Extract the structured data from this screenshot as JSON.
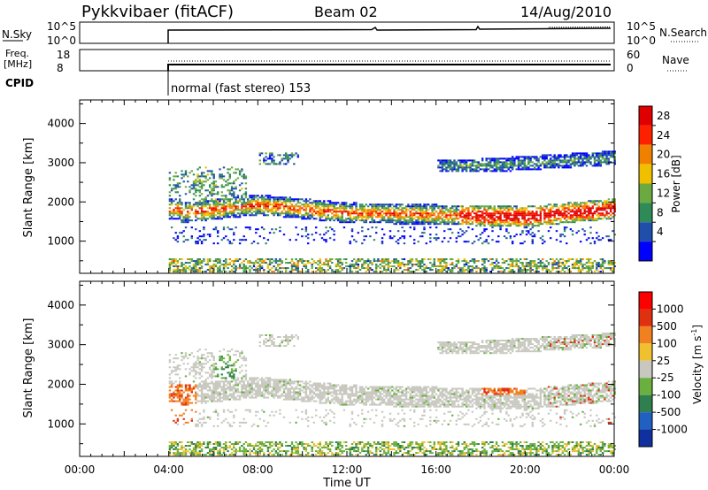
{
  "header": {
    "title": "Pykkvibaer (fitACF)",
    "beam": "Beam 02",
    "date": "14/Aug/2010"
  },
  "strip_noise": {
    "left_label": "N.Sky",
    "left_ticks": [
      "10^5",
      "10^0"
    ],
    "right_ticks": [
      "10^5",
      "10^0"
    ],
    "right_label": "N.Search"
  },
  "strip_freq": {
    "left_label_1": "Freq.",
    "left_label_2": "[MHz]",
    "left_ticks": [
      "18",
      "8"
    ],
    "right_ticks": [
      "60",
      "0"
    ],
    "right_label": "Nave"
  },
  "cpid": {
    "label": "CPID",
    "text": "normal (fast stereo) 153"
  },
  "colors": {
    "power_scale": [
      "#0000ff",
      "#1f4faa",
      "#2e8b57",
      "#6aaa40",
      "#f0c000",
      "#f08000",
      "#ff2000",
      "#e00000"
    ],
    "velocity_scale": [
      "#1030a0",
      "#2060c0",
      "#2f7f4f",
      "#6ab040",
      "#c8c8c0",
      "#f0c030",
      "#f08020",
      "#e03010",
      "#ff0000"
    ]
  },
  "chart_data": [
    {
      "type": "heatmap",
      "name": "power",
      "ylabel": "Slant Range [km]",
      "yticks": [
        "1000",
        "2000",
        "3000",
        "4000"
      ],
      "xticks": [
        "00:00",
        "04:00",
        "08:00",
        "12:00",
        "16:00",
        "20:00",
        "00:00"
      ],
      "xlim_hours": [
        0,
        24
      ],
      "ylim_km": [
        180,
        4600
      ],
      "data_start_hour": 4,
      "colorbar": {
        "label": "Power [dB]",
        "ticks": [
          "28",
          "24",
          "20",
          "16",
          "12",
          "8",
          "4"
        ],
        "range_db": [
          0,
          32
        ]
      },
      "features": {
        "main_band_km": [
          [
            4.5,
            1700
          ],
          [
            8,
            1900
          ],
          [
            12,
            1700
          ],
          [
            16,
            1650
          ],
          [
            20,
            1600
          ],
          [
            24,
            1800
          ]
        ],
        "high_band_km": [
          [
            18,
            2900
          ],
          [
            24,
            3100
          ]
        ],
        "near_range_km": [
          [
            4,
            400
          ],
          [
            24,
            400
          ]
        ]
      }
    },
    {
      "type": "heatmap",
      "name": "velocity",
      "ylabel": "Slant Range [km]",
      "yticks": [
        "1000",
        "2000",
        "3000",
        "4000"
      ],
      "xticks": [
        "00:00",
        "04:00",
        "08:00",
        "12:00",
        "16:00",
        "20:00",
        "00:00"
      ],
      "xlabel": "Time UT",
      "xlim_hours": [
        0,
        24
      ],
      "ylim_km": [
        180,
        4600
      ],
      "data_start_hour": 4,
      "colorbar": {
        "label": "Velocity [m s",
        "label_sup": "-1",
        "label_end": "]",
        "ticks": [
          "1000",
          "500",
          "100",
          "25",
          "-25",
          "-100",
          "-500",
          "-1000"
        ],
        "range_ms": [
          -1000,
          1000
        ]
      }
    }
  ]
}
